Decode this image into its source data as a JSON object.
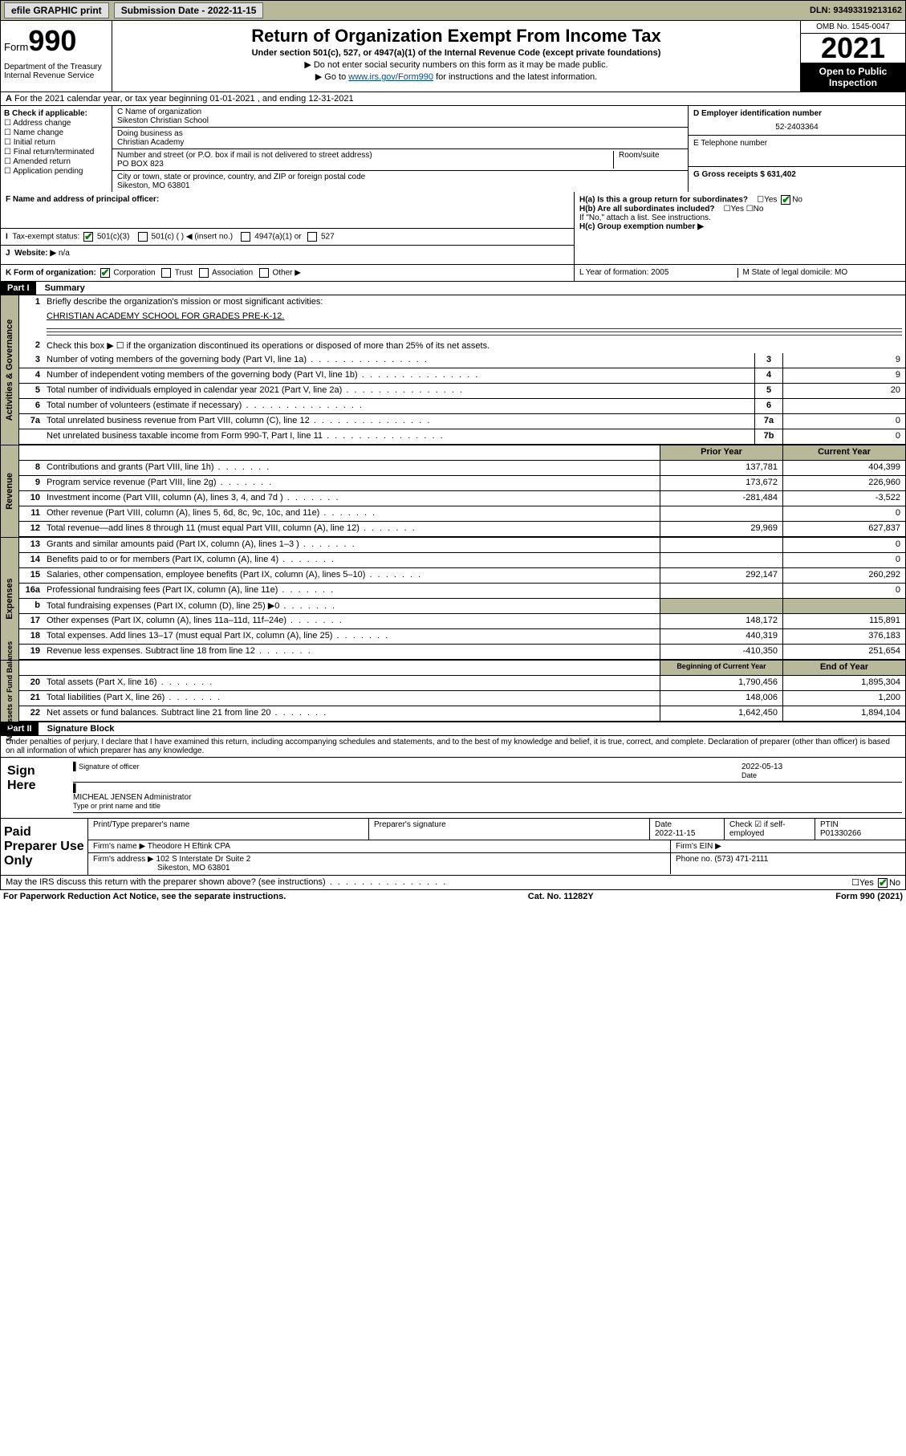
{
  "topbar": {
    "efile": "efile GRAPHIC print",
    "submission_label": "Submission Date - 2022-11-15",
    "dln": "DLN: 93493319213162"
  },
  "header": {
    "form_label": "Form",
    "form_num": "990",
    "title": "Return of Organization Exempt From Income Tax",
    "subtitle": "Under section 501(c), 527, or 4947(a)(1) of the Internal Revenue Code (except private foundations)",
    "note1": "▶ Do not enter social security numbers on this form as it may be made public.",
    "note2_pre": "▶ Go to ",
    "note2_link": "www.irs.gov/Form990",
    "note2_post": " for instructions and the latest information.",
    "dept": "Department of the Treasury\nInternal Revenue Service",
    "omb": "OMB No. 1545-0047",
    "year": "2021",
    "open": "Open to Public Inspection"
  },
  "section_a": "For the 2021 calendar year, or tax year beginning 01-01-2021   , and ending 12-31-2021",
  "col_b": {
    "head": "B Check if applicable:",
    "items": [
      "Address change",
      "Name change",
      "Initial return",
      "Final return/terminated",
      "Amended return",
      "Application pending"
    ]
  },
  "col_c": {
    "name_label": "C Name of organization",
    "name": "Sikeston Christian School",
    "dba_label": "Doing business as",
    "dba": "Christian Academy",
    "addr_label": "Number and street (or P.O. box if mail is not delivered to street address)",
    "room_label": "Room/suite",
    "addr": "PO BOX 823",
    "city_label": "City or town, state or province, country, and ZIP or foreign postal code",
    "city": "Sikeston, MO  63801"
  },
  "col_d": {
    "d_label": "D Employer identification number",
    "d_val": "52-2403364",
    "e_label": "E Telephone number",
    "g_label": "G Gross receipts $ 631,402"
  },
  "row_f": {
    "f": "F  Name and address of principal officer:",
    "ha": "H(a)  Is this a group return for subordinates?",
    "ha_ans": "No",
    "hb": "H(b)  Are all subordinates included?",
    "hb_note": "If \"No,\" attach a list. See instructions.",
    "hc": "H(c)  Group exemption number ▶"
  },
  "row_i": {
    "label": "Tax-exempt status:",
    "o501c3": "501(c)(3)",
    "o501c": "501(c) (  ) ◀ (insert no.)",
    "o4947": "4947(a)(1) or",
    "o527": "527"
  },
  "row_j": {
    "label": "Website: ▶",
    "val": "n/a"
  },
  "row_k": {
    "label": "K Form of organization:",
    "corp": "Corporation",
    "trust": "Trust",
    "assoc": "Association",
    "other": "Other ▶",
    "l": "L Year of formation: 2005",
    "m": "M State of legal domicile: MO"
  },
  "part1": {
    "title": "Part I",
    "name": "Summary",
    "l1_label": "Briefly describe the organization's mission or most significant activities:",
    "l1_val": "CHRISTIAN ACADEMY SCHOOL FOR GRADES PRE-K-12.",
    "l2": "Check this box ▶ ☐  if the organization discontinued its operations or disposed of more than 25% of its net assets.",
    "lines": [
      {
        "n": "3",
        "d": "Number of voting members of the governing body (Part VI, line 1a)",
        "box": "3",
        "v": "9"
      },
      {
        "n": "4",
        "d": "Number of independent voting members of the governing body (Part VI, line 1b)",
        "box": "4",
        "v": "9"
      },
      {
        "n": "5",
        "d": "Total number of individuals employed in calendar year 2021 (Part V, line 2a)",
        "box": "5",
        "v": "20"
      },
      {
        "n": "6",
        "d": "Total number of volunteers (estimate if necessary)",
        "box": "6",
        "v": ""
      },
      {
        "n": "7a",
        "d": "Total unrelated business revenue from Part VIII, column (C), line 12",
        "box": "7a",
        "v": "0"
      },
      {
        "n": "",
        "d": "Net unrelated business taxable income from Form 990-T, Part I, line 11",
        "box": "7b",
        "v": "0"
      }
    ],
    "colhead_prior": "Prior Year",
    "colhead_curr": "Current Year",
    "rev": [
      {
        "n": "8",
        "d": "Contributions and grants (Part VIII, line 1h)",
        "p": "137,781",
        "c": "404,399"
      },
      {
        "n": "9",
        "d": "Program service revenue (Part VIII, line 2g)",
        "p": "173,672",
        "c": "226,960"
      },
      {
        "n": "10",
        "d": "Investment income (Part VIII, column (A), lines 3, 4, and 7d )",
        "p": "-281,484",
        "c": "-3,522"
      },
      {
        "n": "11",
        "d": "Other revenue (Part VIII, column (A), lines 5, 6d, 8c, 9c, 10c, and 11e)",
        "p": "",
        "c": "0"
      },
      {
        "n": "12",
        "d": "Total revenue—add lines 8 through 11 (must equal Part VIII, column (A), line 12)",
        "p": "29,969",
        "c": "627,837"
      }
    ],
    "exp": [
      {
        "n": "13",
        "d": "Grants and similar amounts paid (Part IX, column (A), lines 1–3 )",
        "p": "",
        "c": "0"
      },
      {
        "n": "14",
        "d": "Benefits paid to or for members (Part IX, column (A), line 4)",
        "p": "",
        "c": "0"
      },
      {
        "n": "15",
        "d": "Salaries, other compensation, employee benefits (Part IX, column (A), lines 5–10)",
        "p": "292,147",
        "c": "260,292"
      },
      {
        "n": "16a",
        "d": "Professional fundraising fees (Part IX, column (A), line 11e)",
        "p": "",
        "c": "0"
      },
      {
        "n": "b",
        "d": "Total fundraising expenses (Part IX, column (D), line 25) ▶0",
        "p": "GAP",
        "c": "GAP"
      },
      {
        "n": "17",
        "d": "Other expenses (Part IX, column (A), lines 11a–11d, 11f–24e)",
        "p": "148,172",
        "c": "115,891"
      },
      {
        "n": "18",
        "d": "Total expenses. Add lines 13–17 (must equal Part IX, column (A), line 25)",
        "p": "440,319",
        "c": "376,183"
      },
      {
        "n": "19",
        "d": "Revenue less expenses. Subtract line 18 from line 12",
        "p": "-410,350",
        "c": "251,654"
      }
    ],
    "colhead_begin": "Beginning of Current Year",
    "colhead_end": "End of Year",
    "net": [
      {
        "n": "20",
        "d": "Total assets (Part X, line 16)",
        "p": "1,790,456",
        "c": "1,895,304"
      },
      {
        "n": "21",
        "d": "Total liabilities (Part X, line 26)",
        "p": "148,006",
        "c": "1,200"
      },
      {
        "n": "22",
        "d": "Net assets or fund balances. Subtract line 21 from line 20",
        "p": "1,642,450",
        "c": "1,894,104"
      }
    ]
  },
  "sidelabels": {
    "gov": "Activities & Governance",
    "rev": "Revenue",
    "exp": "Expenses",
    "net": "Net Assets or Fund Balances"
  },
  "part2": {
    "title": "Part II",
    "name": "Signature Block",
    "decl": "Under penalties of perjury, I declare that I have examined this return, including accompanying schedules and statements, and to the best of my knowledge and belief, it is true, correct, and complete. Declaration of preparer (other than officer) is based on all information of which preparer has any knowledge.",
    "sign_here": "Sign Here",
    "sig_officer": "Signature of officer",
    "sig_date": "2022-05-13",
    "date_label": "Date",
    "officer_name": "MICHEAL JENSEN  Administrator",
    "officer_type": "Type or print name and title",
    "paid": "Paid Preparer Use Only",
    "p_name_label": "Print/Type preparer's name",
    "p_sig_label": "Preparer's signature",
    "p_date_label": "Date",
    "p_date": "2022-11-15",
    "p_check": "Check ☑ if self-employed",
    "p_ptin_label": "PTIN",
    "p_ptin": "P01330266",
    "firm_name_label": "Firm's name    ▶",
    "firm_name": "Theodore H Eftink CPA",
    "firm_ein_label": "Firm's EIN ▶",
    "firm_addr_label": "Firm's address ▶",
    "firm_addr1": "102 S Interstate Dr Suite 2",
    "firm_addr2": "Sikeston, MO  63801",
    "phone_label": "Phone no.",
    "phone": "(573) 471-2111",
    "may_irs": "May the IRS discuss this return with the preparer shown above? (see instructions)",
    "may_ans": "No"
  },
  "footer": {
    "left": "For Paperwork Reduction Act Notice, see the separate instructions.",
    "mid": "Cat. No. 11282Y",
    "right": "Form 990 (2021)"
  }
}
